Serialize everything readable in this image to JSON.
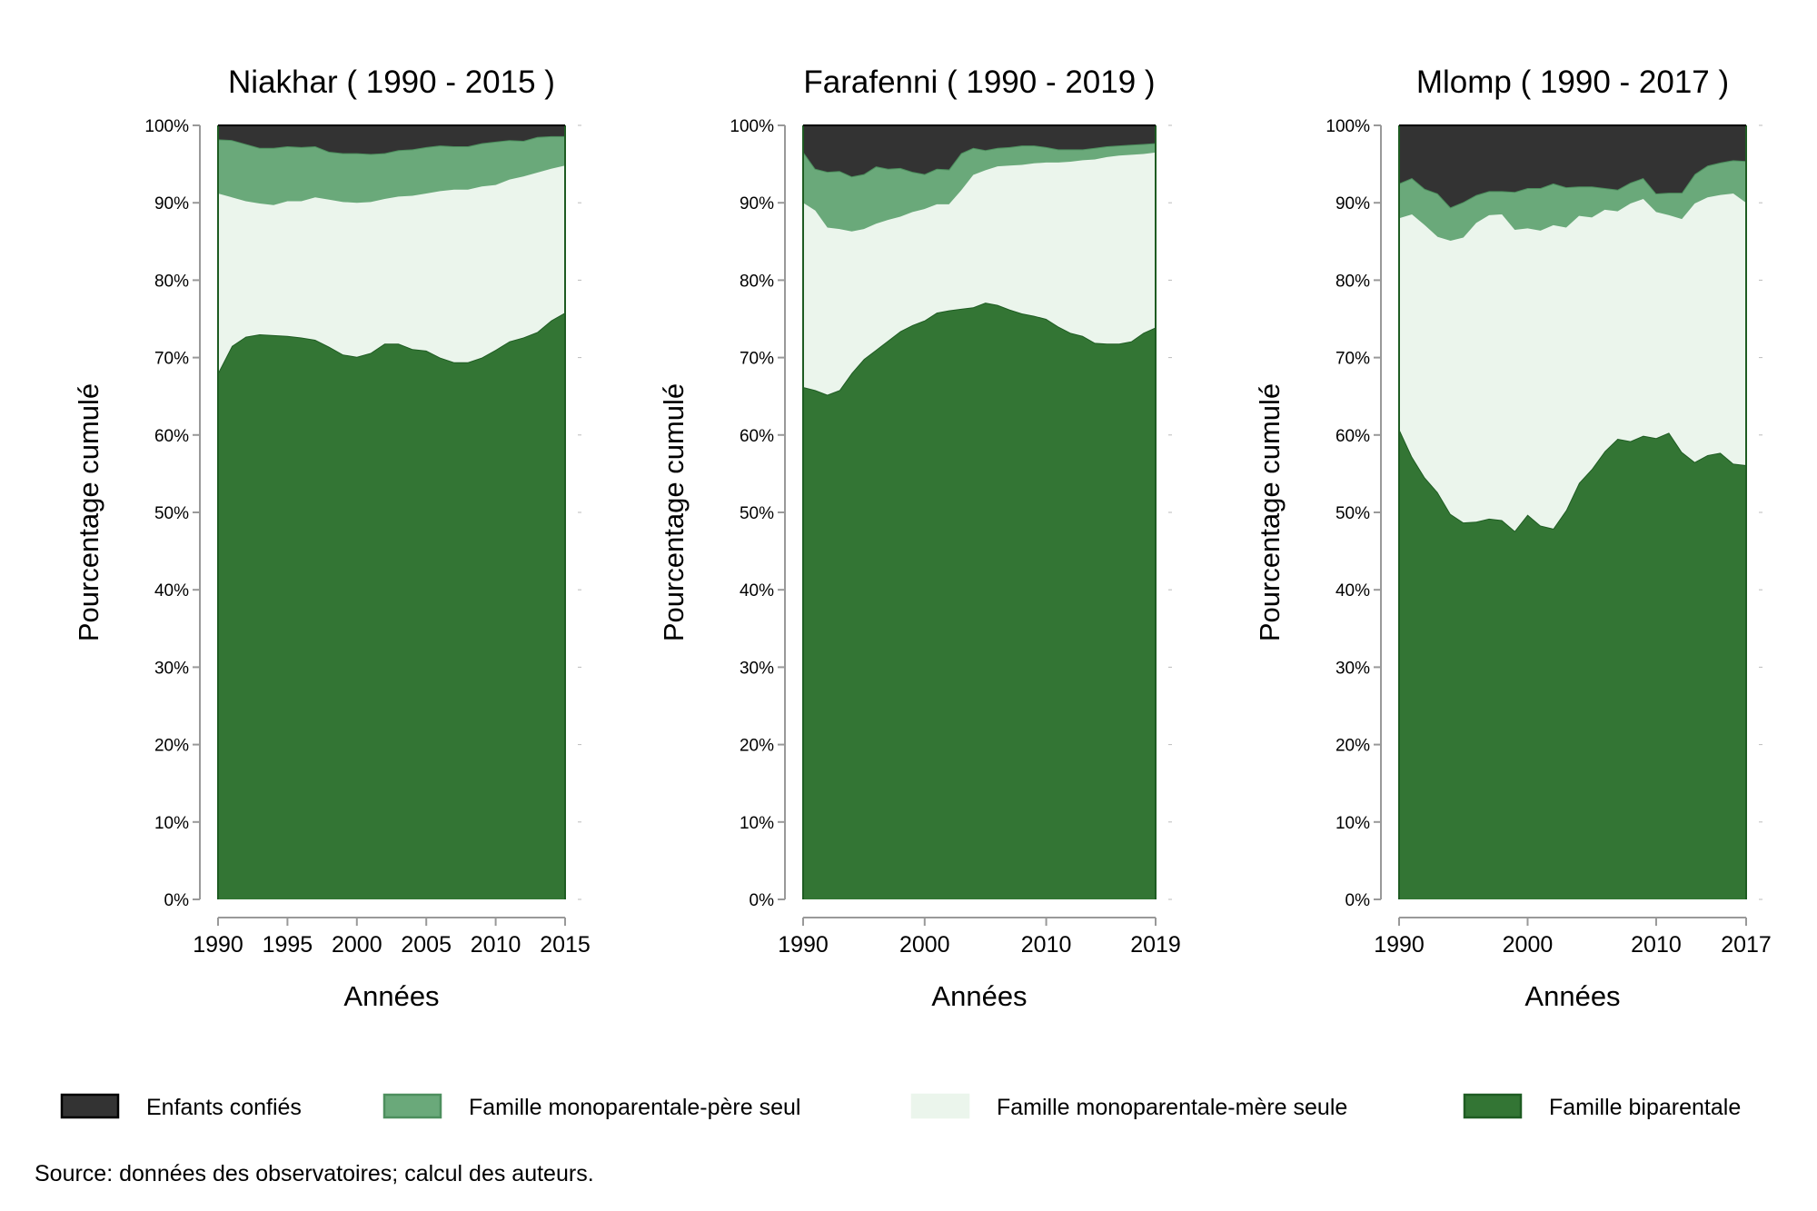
{
  "chart_data": [
    {
      "type": "area",
      "stacked": true,
      "title": "Niakhar ( 1990 - 2015 )",
      "xlabel": "Années",
      "ylabel": "Pourcentage cumulé",
      "xlim": [
        1990,
        2015
      ],
      "ylim": [
        0,
        100
      ],
      "xticks": [
        1990,
        1995,
        2000,
        2005,
        2010,
        2015
      ],
      "x": [
        1990,
        1991,
        1992,
        1993,
        1994,
        1995,
        1996,
        1997,
        1998,
        1999,
        2000,
        2001,
        2002,
        2003,
        2004,
        2005,
        2006,
        2007,
        2008,
        2009,
        2010,
        2011,
        2012,
        2013,
        2014,
        2015
      ],
      "series": [
        {
          "name": "Famille biparentale",
          "values": [
            68,
            71.5,
            72.7,
            73,
            72.9,
            72.8,
            72.6,
            72.3,
            71.4,
            70.4,
            70.1,
            70.6,
            71.8,
            71.8,
            71.1,
            70.9,
            70,
            69.4,
            69.4,
            70,
            71,
            72.1,
            72.6,
            73.3,
            74.8,
            75.8
          ]
        },
        {
          "name": "Famille monoparentale-mère seule",
          "values": [
            23.2,
            19.2,
            17.5,
            16.9,
            16.8,
            17.4,
            17.6,
            18.4,
            19,
            19.7,
            19.9,
            19.5,
            18.7,
            19,
            19.8,
            20.3,
            21.5,
            22.3,
            22.3,
            22.1,
            21.3,
            20.9,
            20.8,
            20.6,
            19.6,
            19
          ]
        },
        {
          "name": "Famille monoparentale-père seul",
          "values": [
            7,
            7.4,
            7.4,
            7.2,
            7.4,
            7.1,
            7,
            6.6,
            6.2,
            6.3,
            6.4,
            6.2,
            5.9,
            6,
            6,
            6,
            5.9,
            5.6,
            5.6,
            5.6,
            5.6,
            5.1,
            4.6,
            4.6,
            4.2,
            3.8
          ]
        },
        {
          "name": "Enfants confiés",
          "values": [
            1.8,
            1.9,
            2.4,
            2.9,
            2.9,
            2.7,
            2.8,
            2.7,
            3.4,
            3.6,
            3.6,
            3.7,
            3.6,
            3.2,
            3.1,
            2.8,
            2.6,
            2.7,
            2.7,
            2.3,
            2.1,
            1.9,
            2,
            1.5,
            1.4,
            1.4
          ]
        }
      ]
    },
    {
      "type": "area",
      "stacked": true,
      "title": "Farafenni ( 1990 - 2019 )",
      "xlabel": "Années",
      "ylabel": "Pourcentage cumulé",
      "xlim": [
        1990,
        2019
      ],
      "ylim": [
        0,
        100
      ],
      "xticks": [
        1990,
        2000,
        2010,
        2019
      ],
      "x": [
        1990,
        1991,
        1992,
        1993,
        1994,
        1995,
        1996,
        1997,
        1998,
        1999,
        2000,
        2001,
        2002,
        2003,
        2004,
        2005,
        2006,
        2007,
        2008,
        2009,
        2010,
        2011,
        2012,
        2013,
        2014,
        2015,
        2016,
        2017,
        2018,
        2019
      ],
      "series": [
        {
          "name": "Famille biparentale",
          "values": [
            66.2,
            65.8,
            65.2,
            65.8,
            68,
            69.8,
            71,
            72.2,
            73.4,
            74.2,
            74.8,
            75.8,
            76.1,
            76.3,
            76.5,
            77.1,
            76.8,
            76.2,
            75.7,
            75.4,
            75,
            74,
            73.2,
            72.8,
            71.9,
            71.8,
            71.8,
            72.1,
            73.2,
            73.9
          ]
        },
        {
          "name": "Famille monoparentale-mère seule",
          "values": [
            23.8,
            23.2,
            21.6,
            20.8,
            18.3,
            16.8,
            16.3,
            15.6,
            14.8,
            14.6,
            14.4,
            14,
            13.7,
            15.3,
            17.1,
            17.1,
            17.9,
            18.6,
            19.2,
            19.7,
            20.2,
            21.2,
            22.1,
            22.7,
            23.7,
            24.1,
            24.3,
            24.1,
            23.1,
            22.6
          ]
        },
        {
          "name": "Famille monoparentale-père seul",
          "values": [
            6.6,
            5.4,
            7.2,
            7.5,
            7.1,
            7.1,
            7.4,
            6.6,
            6.3,
            5.2,
            4.5,
            4.6,
            4.5,
            4.8,
            3.5,
            2.6,
            2.4,
            2.4,
            2.5,
            2.3,
            2,
            1.7,
            1.6,
            1.4,
            1.5,
            1.4,
            1.3,
            1.3,
            1.3,
            1.2
          ]
        },
        {
          "name": "Enfants confiés",
          "values": [
            3.4,
            5.6,
            6,
            5.9,
            6.6,
            6.3,
            5.3,
            5.6,
            5.5,
            6,
            6.3,
            5.6,
            5.7,
            3.6,
            2.9,
            3.2,
            2.9,
            2.8,
            2.6,
            2.6,
            2.8,
            3.1,
            3.1,
            3.1,
            2.9,
            2.7,
            2.6,
            2.5,
            2.4,
            2.3
          ]
        }
      ]
    },
    {
      "type": "area",
      "stacked": true,
      "title": "Mlomp ( 1990 - 2017 )",
      "xlabel": "Années",
      "ylabel": "Pourcentage cumulé",
      "xlim": [
        1990,
        2017
      ],
      "ylim": [
        0,
        100
      ],
      "xticks": [
        1990,
        2000,
        2010,
        2017
      ],
      "x": [
        1990,
        1991,
        1992,
        1993,
        1994,
        1995,
        1996,
        1997,
        1998,
        1999,
        2000,
        2001,
        2002,
        2003,
        2004,
        2005,
        2006,
        2007,
        2008,
        2009,
        2010,
        2011,
        2012,
        2013,
        2014,
        2015,
        2016,
        2017
      ],
      "series": [
        {
          "name": "Famille biparentale",
          "values": [
            60.8,
            57.2,
            54.5,
            52.6,
            49.8,
            48.7,
            48.8,
            49.2,
            49,
            47.6,
            49.7,
            48.3,
            47.9,
            50.3,
            53.8,
            55.6,
            57.9,
            59.5,
            59.2,
            59.9,
            59.6,
            60.3,
            57.8,
            56.5,
            57.4,
            57.7,
            56.3,
            56.1
          ]
        },
        {
          "name": "Famille monoparentale-mère seule",
          "values": [
            27.2,
            31.3,
            32.6,
            33,
            35.3,
            36.8,
            38.6,
            39.2,
            39.5,
            38.9,
            37,
            38.1,
            39.2,
            36.5,
            34.5,
            32.5,
            31.2,
            29.4,
            30.7,
            30.6,
            29.2,
            28.1,
            30.1,
            33.4,
            33.3,
            33.3,
            34.9,
            33.9
          ]
        },
        {
          "name": "Famille monoparentale-père seul",
          "values": [
            4.5,
            4.7,
            4.7,
            5.6,
            4.3,
            4.6,
            3.6,
            3.1,
            3,
            4.9,
            5.2,
            5.5,
            5.4,
            5.2,
            3.8,
            4,
            2.8,
            2.8,
            2.7,
            2.7,
            2.4,
            2.9,
            3.4,
            3.8,
            4.1,
            4.2,
            4.3,
            5.4
          ]
        },
        {
          "name": "Enfants confiés",
          "values": [
            7.5,
            6.8,
            8.2,
            8.8,
            10.6,
            9.9,
            9,
            8.5,
            8.5,
            8.6,
            8.1,
            8.1,
            7.5,
            8,
            7.9,
            7.9,
            8.1,
            8.3,
            7.4,
            6.8,
            8.8,
            8.7,
            8.7,
            6.3,
            5.2,
            4.8,
            4.5,
            4.6
          ]
        }
      ]
    }
  ],
  "legend": {
    "items": [
      {
        "label": "Enfants confiés",
        "color": "#333333",
        "stroke": "#000000"
      },
      {
        "label": "Famille monoparentale-père seul",
        "color": "#6aa97a",
        "stroke": "#4d8f5e"
      },
      {
        "label": "Famille monoparentale-mère seule",
        "color": "#ebf5ec",
        "stroke": "#ebf5ec"
      },
      {
        "label": "Famille biparentale",
        "color": "#337534",
        "stroke": "#1e5c22"
      }
    ]
  },
  "colors": {
    "Famille biparentale": {
      "fill": "#337534",
      "stroke": "#1e5c22"
    },
    "Famille monoparentale-mère seule": {
      "fill": "#ebf5ec",
      "stroke": "#ebf5ec"
    },
    "Famille monoparentale-père seul": {
      "fill": "#6aa97a",
      "stroke": "#4d8f5e"
    },
    "Enfants confiés": {
      "fill": "#333333",
      "stroke": "#000000"
    }
  },
  "source": "Source: données des observatoires; calcul des auteurs."
}
